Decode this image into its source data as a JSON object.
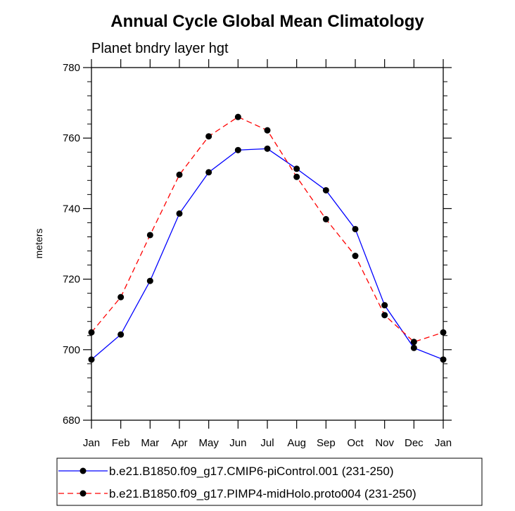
{
  "chart_data": {
    "type": "line",
    "title": "Annual Cycle Global Mean Climatology",
    "subtitle": "Planet bndry layer hgt",
    "xlabel": "",
    "ylabel": "meters",
    "categories": [
      "Jan",
      "Feb",
      "Mar",
      "Apr",
      "May",
      "Jun",
      "Jul",
      "Aug",
      "Sep",
      "Oct",
      "Nov",
      "Dec",
      "Jan"
    ],
    "ylim": [
      680,
      780
    ],
    "yticks": [
      680,
      700,
      720,
      740,
      760,
      780
    ],
    "grid": false,
    "legend_position": "bottom",
    "series": [
      {
        "name": "b.e21.B1850.f09_g17.CMIP6-piControl.001 (231-250)",
        "color": "#0000ff",
        "dash": "solid",
        "marker": "filled-circle",
        "values": [
          697.2,
          704.3,
          719.5,
          738.6,
          750.3,
          756.6,
          757.0,
          751.3,
          745.2,
          734.2,
          712.6,
          700.5,
          697.2
        ]
      },
      {
        "name": "b.e21.B1850.f09_g17.PIMP4-midHolo.proto004 (231-250)",
        "color": "#ff0000",
        "dash": "dashed",
        "marker": "filled-circle",
        "values": [
          704.9,
          714.9,
          732.5,
          749.6,
          760.5,
          766.0,
          762.2,
          749.0,
          737.0,
          726.6,
          709.8,
          702.2,
          704.9
        ]
      }
    ]
  }
}
